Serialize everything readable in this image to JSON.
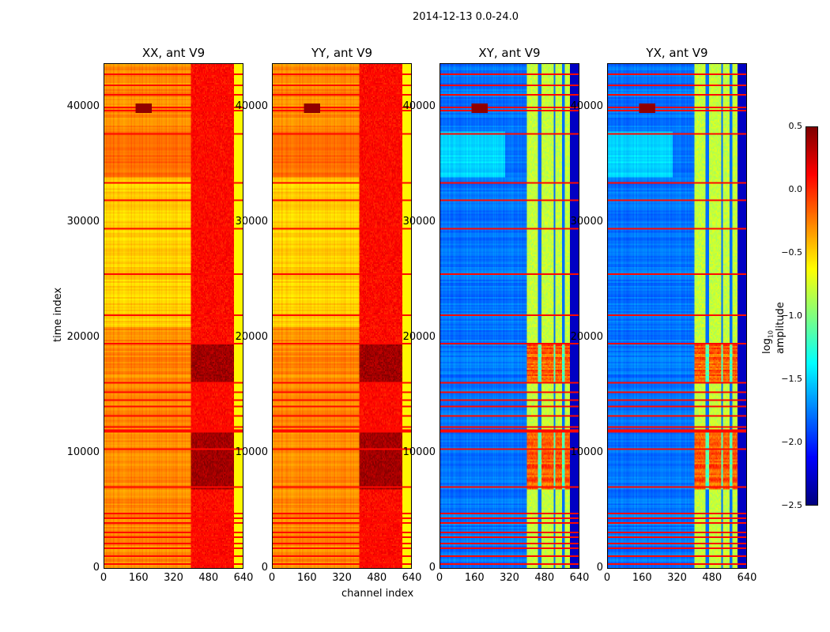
{
  "chart_data": {
    "type": "heatmap",
    "title": "2014-12-13 0.0-24.0",
    "xlabel": "channel index",
    "ylabel": "time index",
    "xlim": [
      0,
      640
    ],
    "ylim": [
      0,
      43800
    ],
    "xticks": [
      "0",
      "160",
      "320",
      "480",
      "640"
    ],
    "yticks": [
      "0",
      "10000",
      "20000",
      "30000",
      "40000"
    ],
    "colormap": "jet",
    "colorbar": {
      "label": "log",
      "label_sub": "10",
      "label_rest": " amplitude",
      "range": [
        -2.5,
        0.5
      ],
      "ticks": [
        "0.5",
        "0.0",
        "−0.5",
        "−1.0",
        "−1.5",
        "−2.0",
        "−2.5"
      ]
    },
    "panels": [
      {
        "title": "XX, ant V9",
        "baseline_low_channels": -0.4,
        "baseline_high_channels": 0.0
      },
      {
        "title": "YY, ant V9",
        "baseline_low_channels": -0.4,
        "baseline_high_channels": 0.0
      },
      {
        "title": "XY, ant V9",
        "baseline_low_channels": -1.9,
        "baseline_high_channels": -0.9
      },
      {
        "title": "YX, ant V9",
        "baseline_low_channels": -1.9,
        "baseline_high_channels": -0.9
      }
    ],
    "flagged_rows": [
      300,
      1000,
      1600,
      2000,
      2600,
      3000,
      3900,
      4300,
      4600,
      7000,
      10300,
      11800,
      12000,
      12200,
      13200,
      14000,
      14600,
      15200,
      16000,
      19500,
      22000,
      25500,
      29500,
      32000,
      33500,
      37800,
      39800,
      40100,
      41200,
      42000,
      43000
    ]
  }
}
